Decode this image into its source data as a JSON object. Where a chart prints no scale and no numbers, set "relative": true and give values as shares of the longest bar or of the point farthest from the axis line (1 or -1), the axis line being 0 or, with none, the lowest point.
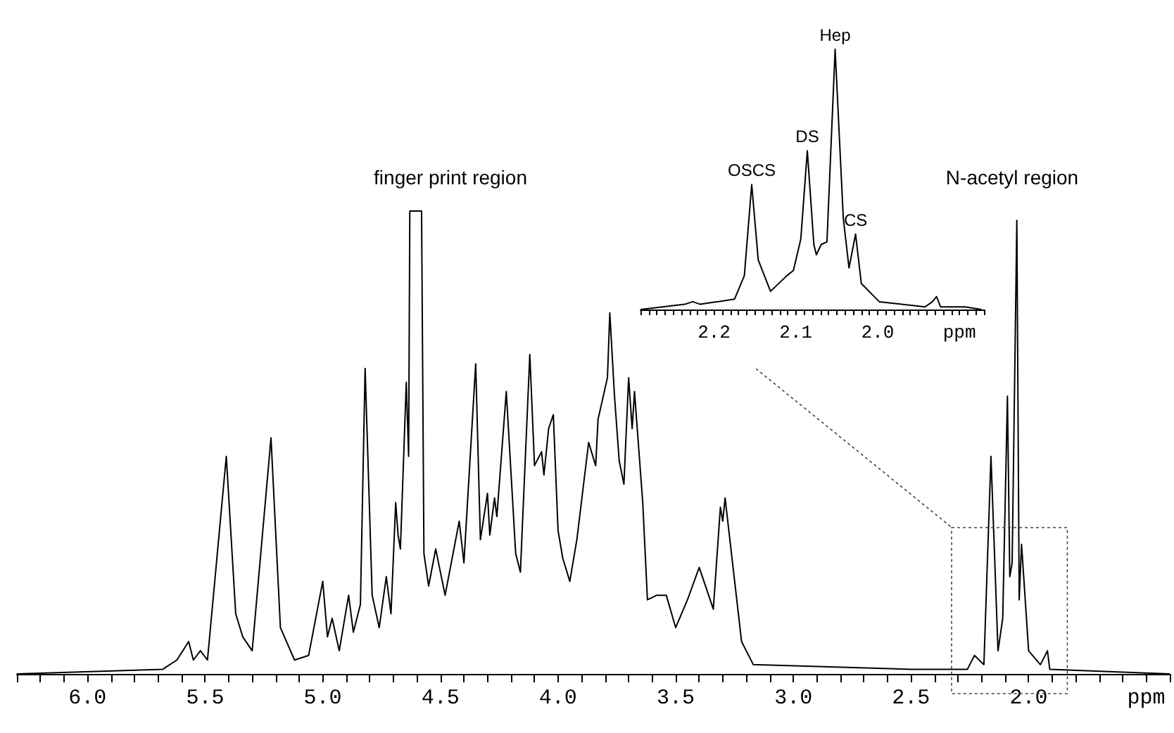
{
  "chart_data": [
    {
      "type": "line",
      "relative": true,
      "color": "#000000",
      "x": [
        6.3,
        5.68,
        5.62,
        5.57,
        5.55,
        5.52,
        5.49,
        5.41,
        5.37,
        5.34,
        5.3,
        5.22,
        5.18,
        5.12,
        5.06,
        5.0,
        4.98,
        4.96,
        4.93,
        4.89,
        4.87,
        4.84,
        4.82,
        4.79,
        4.76,
        4.73,
        4.71,
        4.69,
        4.68,
        4.67,
        4.645,
        4.635,
        4.63,
        4.58,
        4.57,
        4.55,
        4.52,
        4.48,
        4.42,
        4.4,
        4.35,
        4.33,
        4.3,
        4.29,
        4.27,
        4.26,
        4.22,
        4.18,
        4.16,
        4.12,
        4.1,
        4.07,
        4.06,
        4.04,
        4.02,
        4.0,
        3.98,
        3.95,
        3.92,
        3.87,
        3.84,
        3.83,
        3.79,
        3.78,
        3.76,
        3.74,
        3.72,
        3.7,
        3.685,
        3.675,
        3.64,
        3.62,
        3.58,
        3.54,
        3.5,
        3.45,
        3.4,
        3.34,
        3.31,
        3.3,
        3.29,
        3.22,
        3.17,
        2.5,
        2.26,
        2.23,
        2.19,
        2.16,
        2.13,
        2.11,
        2.09,
        2.08,
        2.07,
        2.05,
        2.04,
        2.03,
        2.0,
        1.95,
        1.92,
        1.91,
        1.4
      ],
      "values": [
        0,
        0.01,
        0.03,
        0.07,
        0.03,
        0.05,
        0.03,
        0.47,
        0.13,
        0.08,
        0.05,
        0.51,
        0.1,
        0.03,
        0.04,
        0.2,
        0.08,
        0.12,
        0.05,
        0.17,
        0.09,
        0.15,
        0.66,
        0.17,
        0.1,
        0.21,
        0.13,
        0.37,
        0.3,
        0.27,
        0.63,
        0.47,
        1.0,
        1.0,
        0.26,
        0.19,
        0.27,
        0.17,
        0.33,
        0.24,
        0.67,
        0.29,
        0.39,
        0.3,
        0.38,
        0.34,
        0.61,
        0.26,
        0.22,
        0.69,
        0.45,
        0.48,
        0.43,
        0.53,
        0.56,
        0.31,
        0.25,
        0.2,
        0.29,
        0.5,
        0.45,
        0.55,
        0.64,
        0.78,
        0.6,
        0.46,
        0.41,
        0.64,
        0.53,
        0.61,
        0.37,
        0.16,
        0.17,
        0.17,
        0.1,
        0.16,
        0.23,
        0.14,
        0.36,
        0.33,
        0.38,
        0.07,
        0.02,
        0.01,
        0.01,
        0.04,
        0.02,
        0.47,
        0.05,
        0.12,
        0.6,
        0.21,
        0.24,
        0.98,
        0.16,
        0.28,
        0.05,
        0.02,
        0.05,
        0.01,
        0
      ],
      "xlim": [
        6.3,
        1.4
      ],
      "xticks": [
        {
          "value": 6.2,
          "label": null
        },
        {
          "value": 6.1,
          "label": null
        },
        {
          "value": 6.0,
          "label": "6.0"
        },
        {
          "value": 5.9,
          "label": null
        },
        {
          "value": 5.8,
          "label": null
        },
        {
          "value": 5.7,
          "label": null
        },
        {
          "value": 5.6,
          "label": null
        },
        {
          "value": 5.5,
          "label": "5.5"
        },
        {
          "value": 5.4,
          "label": null
        },
        {
          "value": 5.3,
          "label": null
        },
        {
          "value": 5.2,
          "label": null
        },
        {
          "value": 5.1,
          "label": null
        },
        {
          "value": 5.0,
          "label": "5.0"
        },
        {
          "value": 4.9,
          "label": null
        },
        {
          "value": 4.8,
          "label": null
        },
        {
          "value": 4.7,
          "label": null
        },
        {
          "value": 4.6,
          "label": null
        },
        {
          "value": 4.5,
          "label": "4.5"
        },
        {
          "value": 4.4,
          "label": null
        },
        {
          "value": 4.3,
          "label": null
        },
        {
          "value": 4.2,
          "label": null
        },
        {
          "value": 4.1,
          "label": null
        },
        {
          "value": 4.0,
          "label": "4.0"
        },
        {
          "value": 3.9,
          "label": null
        },
        {
          "value": 3.8,
          "label": null
        },
        {
          "value": 3.7,
          "label": null
        },
        {
          "value": 3.6,
          "label": null
        },
        {
          "value": 3.5,
          "label": "3.5"
        },
        {
          "value": 3.4,
          "label": null
        },
        {
          "value": 3.3,
          "label": null
        },
        {
          "value": 3.2,
          "label": null
        },
        {
          "value": 3.1,
          "label": null
        },
        {
          "value": 3.0,
          "label": "3.0"
        },
        {
          "value": 2.9,
          "label": null
        },
        {
          "value": 2.8,
          "label": null
        },
        {
          "value": 2.7,
          "label": null
        },
        {
          "value": 2.6,
          "label": null
        },
        {
          "value": 2.5,
          "label": "2.5"
        },
        {
          "value": 2.4,
          "label": null
        },
        {
          "value": 2.3,
          "label": null
        },
        {
          "value": 2.2,
          "label": null
        },
        {
          "value": 2.1,
          "label": null
        },
        {
          "value": 2.0,
          "label": "2.0"
        },
        {
          "value": 1.9,
          "label": null
        },
        {
          "value": 1.8,
          "label": null
        },
        {
          "value": 1.7,
          "label": null
        },
        {
          "value": 1.6,
          "label": null
        },
        {
          "value": 1.5,
          "label": "ppm"
        }
      ],
      "annotations": [
        "finger print region",
        "N-acetyl region"
      ]
    },
    {
      "type": "line",
      "relative": true,
      "color": "#000000",
      "x": [
        2.29,
        2.236,
        2.226,
        2.217,
        2.175,
        2.163,
        2.154,
        2.146,
        2.131,
        2.111,
        2.103,
        2.094,
        2.086,
        2.078,
        2.075,
        2.069,
        2.062,
        2.052,
        2.042,
        2.035,
        2.027,
        2.02,
        1.998,
        1.942,
        1.933,
        1.928,
        1.923,
        1.893,
        1.873
      ],
      "values": [
        0,
        0.02,
        0.03,
        0.02,
        0.04,
        0.13,
        0.48,
        0.19,
        0.07,
        0.13,
        0.15,
        0.27,
        0.61,
        0.25,
        0.21,
        0.25,
        0.26,
        1.0,
        0.35,
        0.16,
        0.29,
        0.1,
        0.03,
        0.01,
        0.03,
        0.05,
        0.01,
        0.01,
        0
      ],
      "xlim": [
        2.29,
        1.87
      ],
      "xticks": [
        {
          "value": 2.28,
          "label": null
        },
        {
          "value": 2.27,
          "label": null
        },
        {
          "value": 2.26,
          "label": null
        },
        {
          "value": 2.25,
          "label": null
        },
        {
          "value": 2.24,
          "label": null
        },
        {
          "value": 2.23,
          "label": null
        },
        {
          "value": 2.22,
          "label": null
        },
        {
          "value": 2.21,
          "label": null
        },
        {
          "value": 2.2,
          "label": "2.2"
        },
        {
          "value": 2.19,
          "label": null
        },
        {
          "value": 2.18,
          "label": null
        },
        {
          "value": 2.17,
          "label": null
        },
        {
          "value": 2.16,
          "label": null
        },
        {
          "value": 2.15,
          "label": null
        },
        {
          "value": 2.14,
          "label": null
        },
        {
          "value": 2.13,
          "label": null
        },
        {
          "value": 2.12,
          "label": null
        },
        {
          "value": 2.11,
          "label": null
        },
        {
          "value": 2.1,
          "label": "2.1"
        },
        {
          "value": 2.09,
          "label": null
        },
        {
          "value": 2.08,
          "label": null
        },
        {
          "value": 2.07,
          "label": null
        },
        {
          "value": 2.06,
          "label": null
        },
        {
          "value": 2.05,
          "label": null
        },
        {
          "value": 2.04,
          "label": null
        },
        {
          "value": 2.03,
          "label": null
        },
        {
          "value": 2.02,
          "label": null
        },
        {
          "value": 2.01,
          "label": null
        },
        {
          "value": 2.0,
          "label": "2.0"
        },
        {
          "value": 1.99,
          "label": null
        },
        {
          "value": 1.98,
          "label": null
        },
        {
          "value": 1.97,
          "label": null
        },
        {
          "value": 1.96,
          "label": null
        },
        {
          "value": 1.95,
          "label": null
        },
        {
          "value": 1.94,
          "label": null
        },
        {
          "value": 1.93,
          "label": null
        },
        {
          "value": 1.92,
          "label": null
        },
        {
          "value": 1.91,
          "label": null
        },
        {
          "value": 1.9,
          "label": "ppm"
        },
        {
          "value": 1.89,
          "label": null
        },
        {
          "value": 1.88,
          "label": null
        }
      ],
      "annotations": [
        {
          "text": "OSCS",
          "x": 2.154,
          "y": 0.48
        },
        {
          "text": "DS",
          "x": 2.086,
          "y": 0.61
        },
        {
          "text": "Hep",
          "x": 2.052,
          "y": 1.0
        },
        {
          "text": "CS",
          "x": 2.027,
          "y": 0.29
        }
      ]
    }
  ]
}
